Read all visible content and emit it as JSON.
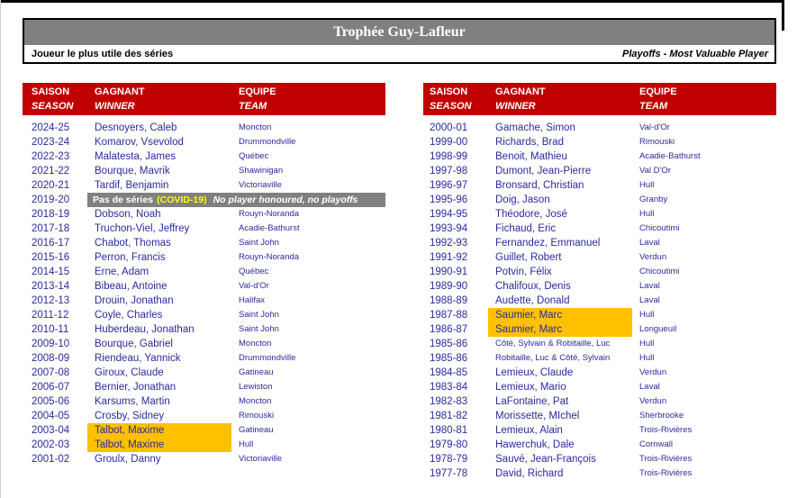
{
  "page": {
    "title": "Trophée Guy-Lafleur",
    "subtitle_left": "Joueur le plus utile des séries",
    "subtitle_right": "Playoffs - Most Valuable Player"
  },
  "columns": [
    {
      "fr": "SAISON",
      "en": "SEASON"
    },
    {
      "fr": "GAGNANT",
      "en": "WINNER"
    },
    {
      "fr": "EQUIPE",
      "en": "TEAM"
    }
  ],
  "covid_banner": {
    "fr": "Pas de séries",
    "covid": "(COVID-19)",
    "en": "No player honoured, no playoffs"
  },
  "colors": {
    "header_red": "#c00000",
    "text_navy": "#2a2a9c",
    "highlight_orange": "#ffc000",
    "banner_gray": "#808080",
    "covid_yellow": "#ffff00"
  },
  "tables": {
    "left": {
      "rows": [
        {
          "season": "2024-25",
          "winner": "Desnoyers, Caleb",
          "team": "Moncton"
        },
        {
          "season": "2023-24",
          "winner": "Komarov, Vsevolod",
          "team": "Drummondville"
        },
        {
          "season": "2022-23",
          "winner": "Malatesta, James",
          "team": "Québec"
        },
        {
          "season": "2021-22",
          "winner": "Bourque, Mavrik",
          "team": "Shawinigan"
        },
        {
          "season": "2020-21",
          "winner": "Tardif, Benjamin",
          "team": "Victoriaville"
        },
        {
          "season": "2019-20",
          "covid": true
        },
        {
          "season": "2018-19",
          "winner": "Dobson, Noah",
          "team": "Rouyn-Noranda"
        },
        {
          "season": "2017-18",
          "winner": "Truchon-Viel, Jeffrey",
          "team": "Acadie-Bathurst"
        },
        {
          "season": "2016-17",
          "winner": "Chabot, Thomas",
          "team": "Saint John"
        },
        {
          "season": "2015-16",
          "winner": "Perron, Francis",
          "team": "Rouyn-Noranda"
        },
        {
          "season": "2014-15",
          "winner": "Erne, Adam",
          "team": "Québec"
        },
        {
          "season": "2013-14",
          "winner": "Bibeau, Antoine",
          "team": "Val-d'Or"
        },
        {
          "season": "2012-13",
          "winner": "Drouin, Jonathan",
          "team": "Halifax"
        },
        {
          "season": "2011-12",
          "winner": "Coyle, Charles",
          "team": "Saint John"
        },
        {
          "season": "2010-11",
          "winner": "Huberdeau, Jonathan",
          "team": "Saint John"
        },
        {
          "season": "2009-10",
          "winner": "Bourque, Gabriel",
          "team": "Moncton"
        },
        {
          "season": "2008-09",
          "winner": "Riendeau, Yannick",
          "team": "Drummondville"
        },
        {
          "season": "2007-08",
          "winner": "Giroux, Claude",
          "team": "Gatineau"
        },
        {
          "season": "2006-07",
          "winner": "Bernier, Jonathan",
          "team": "Lewiston"
        },
        {
          "season": "2005-06",
          "winner": "Karsums, Martin",
          "team": "Moncton"
        },
        {
          "season": "2004-05",
          "winner": "Crosby, Sidney",
          "team": "Rimouski"
        },
        {
          "season": "2003-04",
          "winner": "Talbot, Maxime",
          "team": "Gatineau",
          "highlight": true
        },
        {
          "season": "2002-03",
          "winner": "Talbot, Maxime",
          "team": "Hull",
          "highlight": true
        },
        {
          "season": "2001-02",
          "winner": "Groulx, Danny",
          "team": "Victoriaville"
        }
      ]
    },
    "right": {
      "rows": [
        {
          "season": "2000-01",
          "winner": "Gamache, Simon",
          "team": "Val-d'Or"
        },
        {
          "season": "1999-00",
          "winner": "Richards, Brad",
          "team": "Rimouski"
        },
        {
          "season": "1998-99",
          "winner": "Benoit, Mathieu",
          "team": "Acadie-Bathurst"
        },
        {
          "season": "1997-98",
          "winner": "Dumont, Jean-Pierre",
          "team": "Val D'Or"
        },
        {
          "season": "1996-97",
          "winner": "Bronsard, Christian",
          "team": "Hull"
        },
        {
          "season": "1995-96",
          "winner": "Doig, Jason",
          "team": "Granby"
        },
        {
          "season": "1994-95",
          "winner": "Théodore, José",
          "team": "Hull"
        },
        {
          "season": "1993-94",
          "winner": "Fichaud, Eric",
          "team": "Chicoutimi"
        },
        {
          "season": "1992-93",
          "winner": "Fernandez, Emmanuel",
          "team": "Laval"
        },
        {
          "season": "1991-92",
          "winner": "Guillet, Robert",
          "team": "Verdun"
        },
        {
          "season": "1990-91",
          "winner": "Potvin, Félix",
          "team": "Chicoutimi"
        },
        {
          "season": "1989-90",
          "winner": "Chalifoux, Denis",
          "team": "Laval"
        },
        {
          "season": "1988-89",
          "winner": "Audette, Donald",
          "team": "Laval"
        },
        {
          "season": "1987-88",
          "winner": "Saumier, Marc",
          "team": "Hull",
          "highlight": true
        },
        {
          "season": "1986-87",
          "winner": "Saumier, Marc",
          "team": "Longueuil",
          "highlight": true
        },
        {
          "season": "1985-86",
          "winner": "Côté, Sylvain & Robitaille, Luc",
          "team": "Hull",
          "small": true
        },
        {
          "season": "1985-86",
          "winner": "Robitaille, Luc & Côté, Sylvain",
          "team": "Hull",
          "small": true
        },
        {
          "season": "1984-85",
          "winner": "Lemieux, Claude",
          "team": "Verdun"
        },
        {
          "season": "1983-84",
          "winner": "Lemieux, Mario",
          "team": "Laval"
        },
        {
          "season": "1982-83",
          "winner": "LaFontaine, Pat",
          "team": "Verdun"
        },
        {
          "season": "1981-82",
          "winner": "Morissette, MIchel",
          "team": "Sherbrooke"
        },
        {
          "season": "1980-81",
          "winner": "Lemieux, Alain",
          "team": "Trois-Rivières"
        },
        {
          "season": "1979-80",
          "winner": "Hawerchuk, Dale",
          "team": "Cornwall"
        },
        {
          "season": "1978-79",
          "winner": "Sauvé, Jean-François",
          "team": "Trois-Rivières"
        },
        {
          "season": "1977-78",
          "winner": "David, Richard",
          "team": "Trois-Rivières"
        }
      ]
    }
  }
}
